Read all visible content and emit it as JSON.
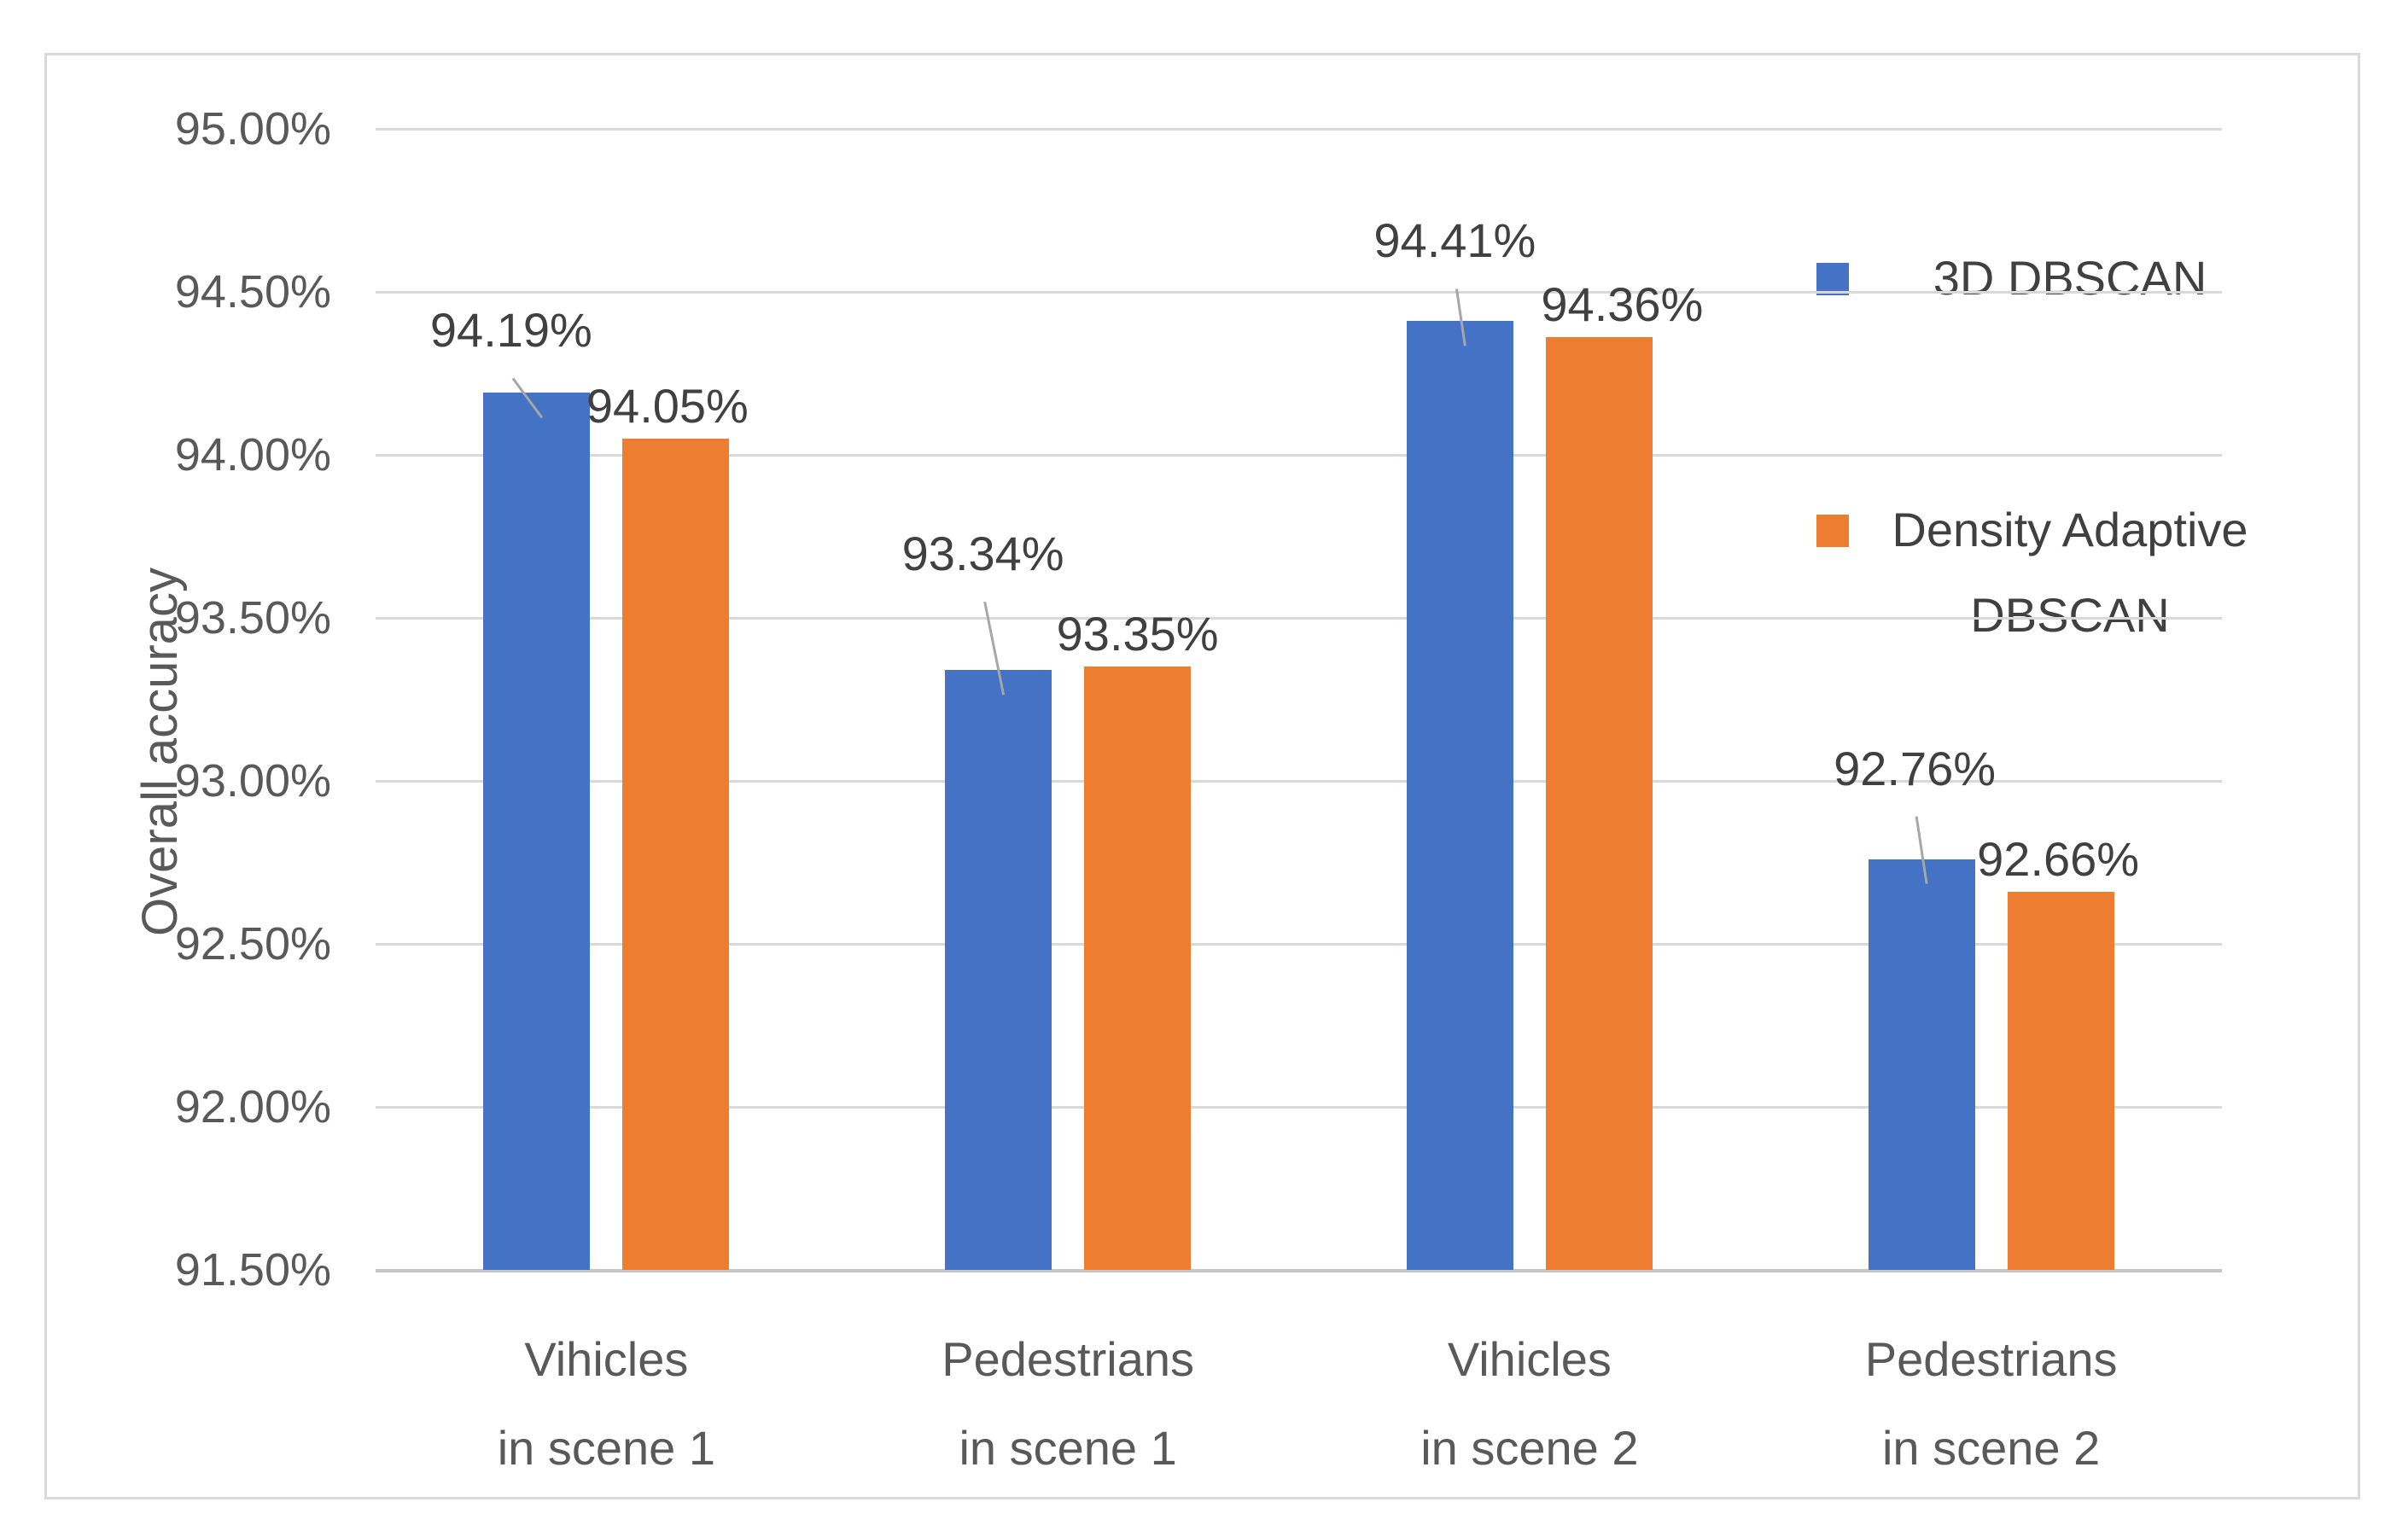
{
  "chart_data": {
    "type": "bar",
    "title": "",
    "ylabel": "Overall accuracy",
    "xlabel": "",
    "grid": true,
    "legend_position": "top-right-inside",
    "categories": [
      "Vihicles in scene 1",
      "Pedestrians in scene 1",
      "Vihicles in scene 2",
      "Pedestrians in scene 2"
    ],
    "categories_lines": [
      [
        "Vihicles",
        "in scene 1"
      ],
      [
        "Pedestrians",
        "in scene 1"
      ],
      [
        "Vihicles",
        "in scene 2"
      ],
      [
        "Pedestrians",
        "in scene 2"
      ]
    ],
    "series": [
      {
        "name": "3D DBSCAN",
        "color": "#4472C4",
        "values": [
          94.19,
          93.34,
          94.41,
          92.76
        ],
        "labels": [
          "94.19%",
          "93.34%",
          "94.41%",
          "92.76%"
        ]
      },
      {
        "name": "Density Adaptive DBSCAN",
        "color": "#ED7D31",
        "values": [
          94.05,
          93.35,
          94.36,
          92.66
        ],
        "labels": [
          "94.05%",
          "93.35%",
          "94.36%",
          "92.66%"
        ]
      }
    ],
    "y_axis": {
      "min": 91.5,
      "max": 95.0,
      "step": 0.5,
      "tick_labels": [
        "95.00%",
        "94.50%",
        "94.00%",
        "93.50%",
        "93.00%",
        "92.50%",
        "92.00%",
        "91.50%"
      ]
    }
  },
  "style": {
    "background": "#FFFFFF",
    "border_color": "#D9D9D9",
    "grid_color": "#D9D9D9",
    "axis_line_color": "#C6C6C6",
    "tick_label_color": "#595959",
    "data_label_color": "#404040",
    "leader_line_color": "#A6A6A6",
    "series_colors": [
      "#4472C4",
      "#ED7D31"
    ]
  }
}
